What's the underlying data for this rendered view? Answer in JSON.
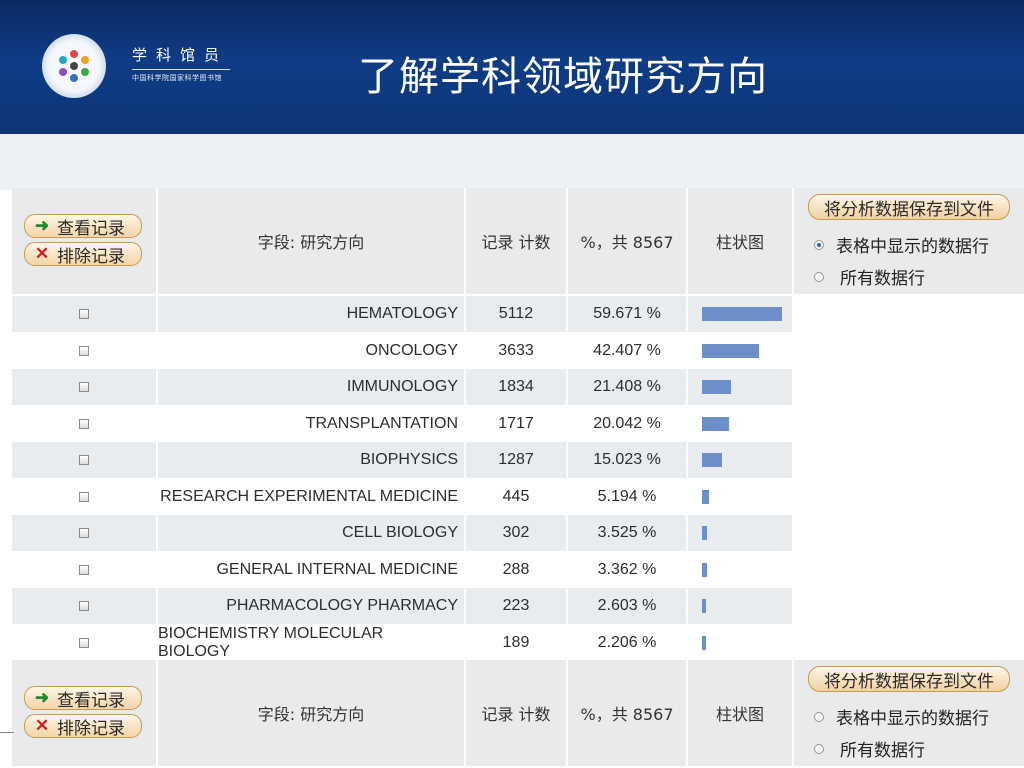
{
  "header": {
    "brand_name": "学科馆员",
    "brand_org": "中国科学院国家科学图书馆",
    "slide_title": "了解学科领域研究方向"
  },
  "table_header": {
    "view_btn": "查看记录",
    "exclude_btn": "排除记录",
    "field_label": "字段: 研究方向",
    "count_label": "记录 计数",
    "pct_label": "%，共 8567",
    "bar_label": "柱状图",
    "save_btn": "将分析数据保存到文件",
    "radio_table": "表格中显示的数据行",
    "radio_all": "所有数据行"
  },
  "icons": {
    "view": "arrow-right-icon",
    "exclude": "x-icon"
  },
  "colors": {
    "banner": "#0f3c86",
    "bar": "#6d8fc9",
    "row_alt": "#e8ecef"
  },
  "rows": [
    {
      "field": "HEMATOLOGY",
      "count": "5112",
      "pct": "59.671 %",
      "fraction": 0.59671
    },
    {
      "field": "ONCOLOGY",
      "count": "3633",
      "pct": "42.407 %",
      "fraction": 0.42407
    },
    {
      "field": "IMMUNOLOGY",
      "count": "1834",
      "pct": "21.408 %",
      "fraction": 0.21408
    },
    {
      "field": "TRANSPLANTATION",
      "count": "1717",
      "pct": "20.042 %",
      "fraction": 0.20042
    },
    {
      "field": "BIOPHYSICS",
      "count": "1287",
      "pct": "15.023 %",
      "fraction": 0.15023
    },
    {
      "field": "RESEARCH EXPERIMENTAL MEDICINE",
      "count": "445",
      "pct": "5.194 %",
      "fraction": 0.05194
    },
    {
      "field": "CELL BIOLOGY",
      "count": "302",
      "pct": "3.525 %",
      "fraction": 0.03525
    },
    {
      "field": "GENERAL INTERNAL MEDICINE",
      "count": "288",
      "pct": "3.362 %",
      "fraction": 0.03362
    },
    {
      "field": "PHARMACOLOGY PHARMACY",
      "count": "223",
      "pct": "2.603 %",
      "fraction": 0.02603
    },
    {
      "field": "BIOCHEMISTRY MOLECULAR BIOLOGY",
      "count": "189",
      "pct": "2.206 %",
      "fraction": 0.02206
    }
  ],
  "selected_radio_top": "table",
  "selected_radio_bottom": "none"
}
